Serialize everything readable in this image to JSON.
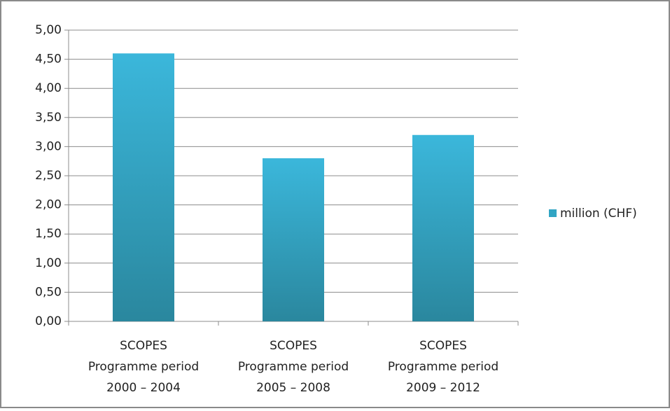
{
  "chart_data": {
    "type": "bar",
    "categories": [
      [
        "SCOPES",
        "Programme period",
        "2000 – 2004"
      ],
      [
        "SCOPES",
        "Programme period",
        "2005 – 2008"
      ],
      [
        "SCOPES",
        "Programme period",
        "2009 – 2012"
      ]
    ],
    "series": [
      {
        "name": "million (CHF)",
        "color": "#31a5c4",
        "values": [
          4.6,
          2.8,
          3.2
        ]
      }
    ],
    "ylim": [
      0,
      5
    ],
    "yticks": [
      {
        "value": 0,
        "label": "0,00"
      },
      {
        "value": 0.5,
        "label": "0,50"
      },
      {
        "value": 1,
        "label": "1,00"
      },
      {
        "value": 1.5,
        "label": "1,50"
      },
      {
        "value": 2,
        "label": "2,00"
      },
      {
        "value": 2.5,
        "label": "2,50"
      },
      {
        "value": 3,
        "label": "3,00"
      },
      {
        "value": 3.5,
        "label": "3,50"
      },
      {
        "value": 4,
        "label": "4,00"
      },
      {
        "value": 4.5,
        "label": "4,50"
      },
      {
        "value": 5,
        "label": "5,00"
      }
    ],
    "grid": true,
    "legend": "right"
  }
}
